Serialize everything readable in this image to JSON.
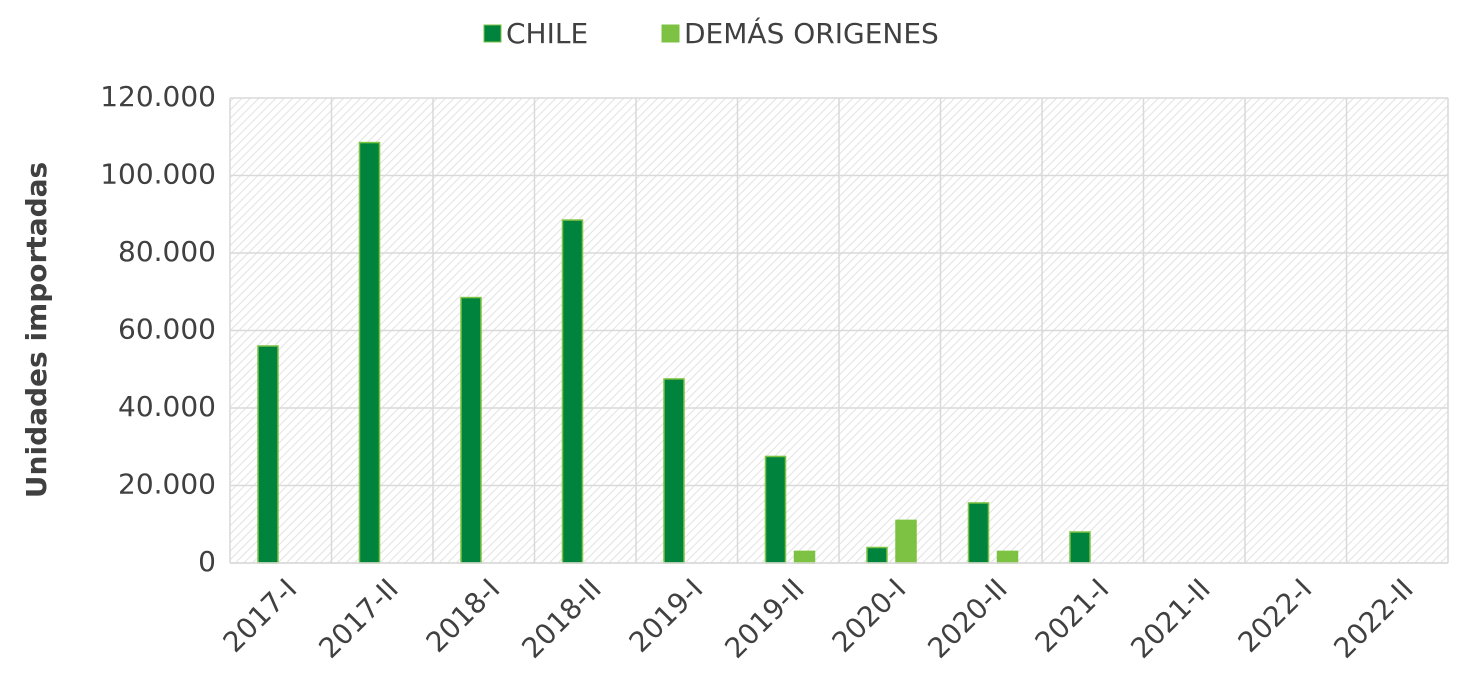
{
  "chart_data": {
    "type": "bar",
    "y_label": "Unidades importadas",
    "categories": [
      "2017-I",
      "2017-II",
      "2018-I",
      "2018-II",
      "2019-I",
      "2019-II",
      "2020-I",
      "2020-II",
      "2021-I",
      "2021-II",
      "2022-I",
      "2022-II"
    ],
    "series": [
      {
        "name": "CHILE",
        "color": "#00843d",
        "values": [
          56000,
          108500,
          68500,
          88500,
          47500,
          27500,
          4000,
          15500,
          8000,
          0,
          0,
          0
        ]
      },
      {
        "name": "DEMÁS ORIGENES",
        "color": "#7dc242",
        "values": [
          0,
          0,
          0,
          0,
          0,
          3000,
          11000,
          3000,
          0,
          0,
          0,
          0
        ]
      }
    ],
    "ylim": [
      0,
      120000
    ],
    "yticks": [
      0,
      {
        "value": 20000,
        "label": "20.000"
      },
      {
        "value": 40000,
        "label": "40.000"
      },
      {
        "value": 60000,
        "label": "60.000"
      },
      {
        "value": 80000,
        "label": "80.000"
      },
      {
        "value": 100000,
        "label": "100.000"
      },
      {
        "value": 120000,
        "label": "120.000"
      }
    ],
    "grid": true,
    "legend": "top"
  }
}
